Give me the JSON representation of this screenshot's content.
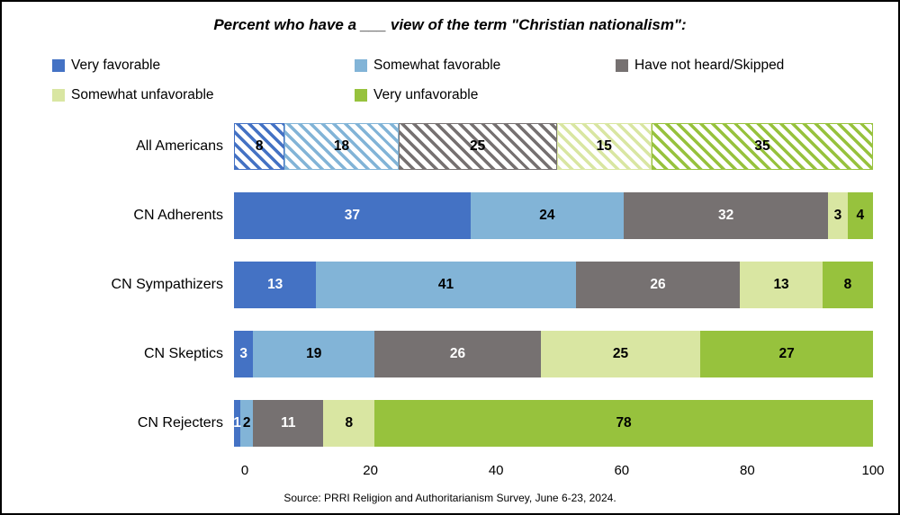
{
  "title": "Percent who have a ___ view of the term \"Christian nationalism\":",
  "source": "Source: PRRI Religion and Authoritarianism Survey, June 6-23, 2024.",
  "chart_data": {
    "type": "bar",
    "orientation": "horizontal",
    "stacked": true,
    "title": "Percent who have a ___ view of the term \"Christian nationalism\":",
    "categories": [
      "All Americans",
      "CN Adherents",
      "CN Sympathizers",
      "CN Skeptics",
      "CN Rejecters"
    ],
    "series": [
      {
        "name": "Very favorable",
        "color": "#4472C4",
        "text_color": "#FFFFFF",
        "values": [
          8,
          37,
          13,
          3,
          1
        ]
      },
      {
        "name": "Somewhat favorable",
        "color": "#82B4D7",
        "text_color": "#000000",
        "values": [
          18,
          24,
          41,
          19,
          2
        ]
      },
      {
        "name": "Have not heard/Skipped",
        "color": "#767171",
        "text_color": "#FFFFFF",
        "values": [
          25,
          32,
          26,
          26,
          11
        ]
      },
      {
        "name": "Somewhat unfavorable",
        "color": "#D9E6A2",
        "text_color": "#000000",
        "values": [
          15,
          3,
          13,
          25,
          8
        ]
      },
      {
        "name": "Very unfavorable",
        "color": "#97C23D",
        "text_color": "#000000",
        "values": [
          35,
          4,
          8,
          27,
          78
        ]
      }
    ],
    "hatched_category": "All Americans",
    "x_ticks": [
      0,
      20,
      40,
      60,
      80,
      100
    ],
    "xlim": [
      0,
      100
    ],
    "grid": false,
    "legend_position": "top"
  }
}
